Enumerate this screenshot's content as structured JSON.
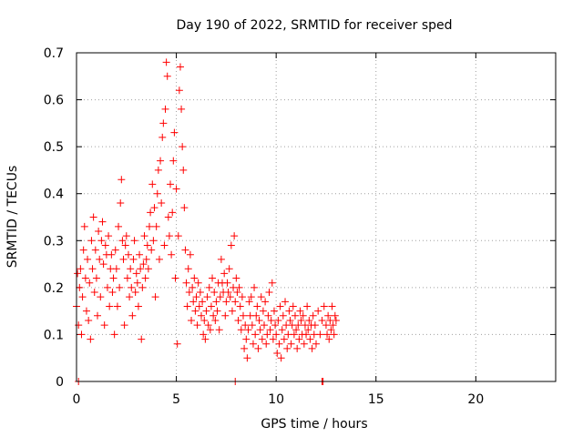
{
  "chart_data": {
    "type": "scatter",
    "title": "Day 190 of 2022, SRMTID for receiver sped",
    "xlabel": "GPS time / hours",
    "ylabel": "SRMTID / TECUs",
    "xlim": [
      0,
      24
    ],
    "ylim": [
      0,
      0.7
    ],
    "xticks": [
      0,
      5,
      10,
      15,
      20
    ],
    "xtick_labels": [
      "0",
      "5",
      "10",
      "15",
      "20"
    ],
    "yticks": [
      0,
      0.1,
      0.2,
      0.3,
      0.4,
      0.5,
      0.6,
      0.7
    ],
    "ytick_labels": [
      "0",
      "0.1",
      "0.2",
      "0.3",
      "0.4",
      "0.5",
      "0.6",
      "0.7"
    ],
    "grid": true,
    "marker": "+",
    "series": [
      {
        "name": "SRMTID",
        "color": "#ff0000",
        "points": [
          [
            0.0,
            0.16
          ],
          [
            0.05,
            0.23
          ],
          [
            0.1,
            0.12
          ],
          [
            0.15,
            0.2
          ],
          [
            0.2,
            0.24
          ],
          [
            0.25,
            0.1
          ],
          [
            0.3,
            0.18
          ],
          [
            0.35,
            0.28
          ],
          [
            0.4,
            0.33
          ],
          [
            0.45,
            0.22
          ],
          [
            0.5,
            0.15
          ],
          [
            0.55,
            0.26
          ],
          [
            0.6,
            0.13
          ],
          [
            0.65,
            0.21
          ],
          [
            0.7,
            0.09
          ],
          [
            0.75,
            0.3
          ],
          [
            0.8,
            0.24
          ],
          [
            0.85,
            0.35
          ],
          [
            0.9,
            0.19
          ],
          [
            0.95,
            0.28
          ],
          [
            1.0,
            0.22
          ],
          [
            1.05,
            0.14
          ],
          [
            1.1,
            0.32
          ],
          [
            1.15,
            0.26
          ],
          [
            1.2,
            0.18
          ],
          [
            1.25,
            0.3
          ],
          [
            1.3,
            0.34
          ],
          [
            1.35,
            0.25
          ],
          [
            1.4,
            0.12
          ],
          [
            1.45,
            0.29
          ],
          [
            1.5,
            0.27
          ],
          [
            1.55,
            0.2
          ],
          [
            1.6,
            0.31
          ],
          [
            1.65,
            0.16
          ],
          [
            1.7,
            0.24
          ],
          [
            1.75,
            0.27
          ],
          [
            1.8,
            0.19
          ],
          [
            1.85,
            0.22
          ],
          [
            1.9,
            0.1
          ],
          [
            1.95,
            0.28
          ],
          [
            2.0,
            0.24
          ],
          [
            2.05,
            0.16
          ],
          [
            2.1,
            0.33
          ],
          [
            2.15,
            0.2
          ],
          [
            2.2,
            0.38
          ],
          [
            2.25,
            0.43
          ],
          [
            2.3,
            0.3
          ],
          [
            2.35,
            0.26
          ],
          [
            2.4,
            0.12
          ],
          [
            2.45,
            0.29
          ],
          [
            2.5,
            0.31
          ],
          [
            2.55,
            0.22
          ],
          [
            2.6,
            0.27
          ],
          [
            2.65,
            0.18
          ],
          [
            2.7,
            0.24
          ],
          [
            2.75,
            0.2
          ],
          [
            2.8,
            0.14
          ],
          [
            2.85,
            0.26
          ],
          [
            2.9,
            0.3
          ],
          [
            2.95,
            0.19
          ],
          [
            3.0,
            0.23
          ],
          [
            3.05,
            0.21
          ],
          [
            3.1,
            0.16
          ],
          [
            3.15,
            0.27
          ],
          [
            3.2,
            0.24
          ],
          [
            3.25,
            0.09
          ],
          [
            3.3,
            0.2
          ],
          [
            3.35,
            0.25
          ],
          [
            3.4,
            0.31
          ],
          [
            3.45,
            0.22
          ],
          [
            3.5,
            0.26
          ],
          [
            3.55,
            0.29
          ],
          [
            3.6,
            0.24
          ],
          [
            3.65,
            0.33
          ],
          [
            3.7,
            0.36
          ],
          [
            3.75,
            0.28
          ],
          [
            3.8,
            0.42
          ],
          [
            3.85,
            0.3
          ],
          [
            3.9,
            0.37
          ],
          [
            3.95,
            0.18
          ],
          [
            4.0,
            0.33
          ],
          [
            4.05,
            0.4
          ],
          [
            4.1,
            0.45
          ],
          [
            4.15,
            0.26
          ],
          [
            4.2,
            0.47
          ],
          [
            4.25,
            0.38
          ],
          [
            4.3,
            0.52
          ],
          [
            4.35,
            0.55
          ],
          [
            4.4,
            0.29
          ],
          [
            4.45,
            0.58
          ],
          [
            4.5,
            0.68
          ],
          [
            4.55,
            0.65
          ],
          [
            4.6,
            0.35
          ],
          [
            4.65,
            0.31
          ],
          [
            4.7,
            0.42
          ],
          [
            4.75,
            0.27
          ],
          [
            4.8,
            0.36
          ],
          [
            4.85,
            0.47
          ],
          [
            4.9,
            0.53
          ],
          [
            4.95,
            0.22
          ],
          [
            5.0,
            0.41
          ],
          [
            5.05,
            0.08
          ],
          [
            5.1,
            0.31
          ],
          [
            5.15,
            0.62
          ],
          [
            5.2,
            0.67
          ],
          [
            5.25,
            0.58
          ],
          [
            5.3,
            0.5
          ],
          [
            5.35,
            0.45
          ],
          [
            5.4,
            0.37
          ],
          [
            5.45,
            0.28
          ],
          [
            5.5,
            0.21
          ],
          [
            5.55,
            0.16
          ],
          [
            5.6,
            0.24
          ],
          [
            5.65,
            0.19
          ],
          [
            5.7,
            0.27
          ],
          [
            5.75,
            0.13
          ],
          [
            5.8,
            0.2
          ],
          [
            5.85,
            0.17
          ],
          [
            5.9,
            0.22
          ],
          [
            5.95,
            0.15
          ],
          [
            6.0,
            0.18
          ],
          [
            6.05,
            0.12
          ],
          [
            6.1,
            0.21
          ],
          [
            6.15,
            0.16
          ],
          [
            6.2,
            0.19
          ],
          [
            6.25,
            0.14
          ],
          [
            6.3,
            0.17
          ],
          [
            6.35,
            0.1
          ],
          [
            6.4,
            0.13
          ],
          [
            6.45,
            0.09
          ],
          [
            6.5,
            0.15
          ],
          [
            6.55,
            0.18
          ],
          [
            6.6,
            0.12
          ],
          [
            6.65,
            0.2
          ],
          [
            6.7,
            0.11
          ],
          [
            6.75,
            0.16
          ],
          [
            6.8,
            0.22
          ],
          [
            6.85,
            0.14
          ],
          [
            6.9,
            0.19
          ],
          [
            6.95,
            0.13
          ],
          [
            7.0,
            0.17
          ],
          [
            7.05,
            0.15
          ],
          [
            7.1,
            0.21
          ],
          [
            7.15,
            0.11
          ],
          [
            7.2,
            0.18
          ],
          [
            7.25,
            0.26
          ],
          [
            7.3,
            0.21
          ],
          [
            7.35,
            0.19
          ],
          [
            7.4,
            0.23
          ],
          [
            7.45,
            0.14
          ],
          [
            7.5,
            0.17
          ],
          [
            7.55,
            0.21
          ],
          [
            7.6,
            0.19
          ],
          [
            7.65,
            0.24
          ],
          [
            7.7,
            0.18
          ],
          [
            7.75,
            0.29
          ],
          [
            7.8,
            0.15
          ],
          [
            7.85,
            0.2
          ],
          [
            7.9,
            0.31
          ],
          [
            7.95,
            0.17
          ],
          [
            8.0,
            0.22
          ],
          [
            8.05,
            0.19
          ],
          [
            8.1,
            0.13
          ],
          [
            8.15,
            0.2
          ],
          [
            8.2,
            0.16
          ],
          [
            8.25,
            0.11
          ],
          [
            8.3,
            0.18
          ],
          [
            8.35,
            0.14
          ],
          [
            8.4,
            0.07
          ],
          [
            8.45,
            0.12
          ],
          [
            8.5,
            0.09
          ],
          [
            8.55,
            0.05
          ],
          [
            8.6,
            0.11
          ],
          [
            8.65,
            0.17
          ],
          [
            8.7,
            0.14
          ],
          [
            8.75,
            0.18
          ],
          [
            8.8,
            0.12
          ],
          [
            8.85,
            0.08
          ],
          [
            8.9,
            0.2
          ],
          [
            8.95,
            0.1
          ],
          [
            9.0,
            0.14
          ],
          [
            9.05,
            0.16
          ],
          [
            9.1,
            0.07
          ],
          [
            9.15,
            0.13
          ],
          [
            9.2,
            0.11
          ],
          [
            9.25,
            0.18
          ],
          [
            9.3,
            0.09
          ],
          [
            9.35,
            0.15
          ],
          [
            9.4,
            0.12
          ],
          [
            9.45,
            0.17
          ],
          [
            9.5,
            0.08
          ],
          [
            9.55,
            0.1
          ],
          [
            9.6,
            0.14
          ],
          [
            9.65,
            0.19
          ],
          [
            9.7,
            0.11
          ],
          [
            9.75,
            0.13
          ],
          [
            9.8,
            0.21
          ],
          [
            9.85,
            0.09
          ],
          [
            9.9,
            0.15
          ],
          [
            9.95,
            0.12
          ],
          [
            10.0,
            0.1
          ],
          [
            10.05,
            0.06
          ],
          [
            10.1,
            0.13
          ],
          [
            10.15,
            0.08
          ],
          [
            10.2,
            0.16
          ],
          [
            10.25,
            0.05
          ],
          [
            10.3,
            0.11
          ],
          [
            10.35,
            0.14
          ],
          [
            10.4,
            0.09
          ],
          [
            10.45,
            0.17
          ],
          [
            10.5,
            0.12
          ],
          [
            10.55,
            0.07
          ],
          [
            10.6,
            0.1
          ],
          [
            10.65,
            0.15
          ],
          [
            10.7,
            0.13
          ],
          [
            10.75,
            0.08
          ],
          [
            10.8,
            0.12
          ],
          [
            10.85,
            0.16
          ],
          [
            10.9,
            0.1
          ],
          [
            10.95,
            0.14
          ],
          [
            11.0,
            0.11
          ],
          [
            11.05,
            0.07
          ],
          [
            11.1,
            0.12
          ],
          [
            11.15,
            0.09
          ],
          [
            11.2,
            0.15
          ],
          [
            11.25,
            0.13
          ],
          [
            11.3,
            0.1
          ],
          [
            11.35,
            0.14
          ],
          [
            11.4,
            0.08
          ],
          [
            11.45,
            0.12
          ],
          [
            11.5,
            0.1
          ],
          [
            11.55,
            0.16
          ],
          [
            11.6,
            0.11
          ],
          [
            11.65,
            0.13
          ],
          [
            11.7,
            0.09
          ],
          [
            11.75,
            0.12
          ],
          [
            11.8,
            0.07
          ],
          [
            11.85,
            0.14
          ],
          [
            11.9,
            0.1
          ],
          [
            11.95,
            0.12
          ],
          [
            12.0,
            0.08
          ],
          [
            12.1,
            0.15
          ],
          [
            12.2,
            0.1
          ],
          [
            12.3,
            0.13
          ],
          [
            12.4,
            0.16
          ],
          [
            12.5,
            0.12
          ],
          [
            12.55,
            0.1
          ],
          [
            12.6,
            0.14
          ],
          [
            12.65,
            0.09
          ],
          [
            12.7,
            0.13
          ],
          [
            12.75,
            0.11
          ],
          [
            12.8,
            0.16
          ],
          [
            12.85,
            0.12
          ],
          [
            12.9,
            0.1
          ],
          [
            12.95,
            0.14
          ],
          [
            13.0,
            0.13
          ],
          [
            0.1,
            0.0
          ],
          [
            7.95,
            0.0
          ],
          [
            12.3,
            0.0
          ],
          [
            12.35,
            0.0
          ]
        ]
      }
    ]
  }
}
